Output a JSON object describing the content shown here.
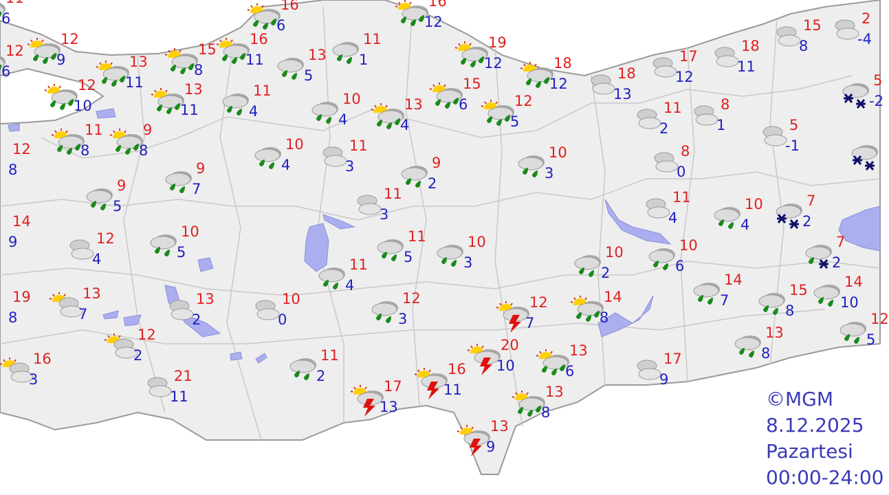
{
  "map": {
    "colors": {
      "land": "#eeeeee",
      "sea": "#ffffff",
      "border": "#c4c4c4",
      "lake": "#abaff0",
      "max": "#e02020",
      "min": "#2020c0",
      "footer": "#3a3ab8"
    },
    "stations": [
      {
        "icon": "partly-cloudy-rain",
        "max": "11",
        "min": "6"
      },
      {
        "icon": "partly-cloudy-rain",
        "max": "12",
        "min": "6"
      },
      {
        "icon": "partly-cloudy-rain",
        "max": "12",
        "min": "9"
      },
      {
        "icon": "partly-cloudy-rain",
        "max": "12",
        "min": "10"
      },
      {
        "icon": "partly-cloudy-rain",
        "max": "11",
        "min": "8"
      },
      {
        "icon": "partly-cloudy-rain",
        "max": "9",
        "min": "8"
      },
      {
        "icon": "fog",
        "max": "12",
        "min": "8"
      },
      {
        "icon": "fog",
        "max": "14",
        "min": "9"
      },
      {
        "icon": "fog",
        "max": "19",
        "min": "8"
      },
      {
        "icon": "rain",
        "max": "9",
        "min": "5"
      },
      {
        "icon": "cloudy",
        "max": "12",
        "min": "4"
      },
      {
        "icon": "partly-cloudy",
        "max": "13",
        "min": "7"
      },
      {
        "icon": "partly-cloudy",
        "max": "12",
        "min": "2"
      },
      {
        "icon": "partly-cloudy",
        "max": "16",
        "min": "3"
      },
      {
        "icon": "cloudy",
        "max": "21",
        "min": "11"
      },
      {
        "icon": "partly-cloudy-rain",
        "max": "13",
        "min": "11"
      },
      {
        "icon": "partly-cloudy-rain",
        "max": "13",
        "min": "11"
      },
      {
        "icon": "partly-cloudy-rain",
        "max": "15",
        "min": "8"
      },
      {
        "icon": "partly-cloudy-rain",
        "max": "16",
        "min": "11"
      },
      {
        "icon": "partly-cloudy-rain",
        "max": "16",
        "min": "6"
      },
      {
        "icon": "rain",
        "max": "11",
        "min": "4"
      },
      {
        "icon": "rain",
        "max": "9",
        "min": "7"
      },
      {
        "icon": "rain",
        "max": "10",
        "min": "5"
      },
      {
        "icon": "cloudy",
        "max": "13",
        "min": "2"
      },
      {
        "icon": "cloudy",
        "max": "10",
        "min": "0"
      },
      {
        "icon": "rain",
        "max": "13",
        "min": "5"
      },
      {
        "icon": "rain",
        "max": "11",
        "min": "1"
      },
      {
        "icon": "rain",
        "max": "10",
        "min": "4"
      },
      {
        "icon": "rain",
        "max": "10",
        "min": "4"
      },
      {
        "icon": "cloudy",
        "max": "11",
        "min": "3"
      },
      {
        "icon": "partly-cloudy-rain",
        "max": "13",
        "min": "4"
      },
      {
        "icon": "rain",
        "max": "9",
        "min": "2"
      },
      {
        "icon": "cloudy",
        "max": "11",
        "min": "3"
      },
      {
        "icon": "rain",
        "max": "11",
        "min": "5"
      },
      {
        "icon": "rain",
        "max": "11",
        "min": "4"
      },
      {
        "icon": "rain",
        "max": "10",
        "min": "3"
      },
      {
        "icon": "rain",
        "max": "12",
        "min": "3"
      },
      {
        "icon": "rain",
        "max": "11",
        "min": "2"
      },
      {
        "icon": "thunderstorm",
        "max": "17",
        "min": "13"
      },
      {
        "icon": "thunderstorm",
        "max": "16",
        "min": "11"
      },
      {
        "icon": "thunderstorm",
        "max": "20",
        "min": "10"
      },
      {
        "icon": "thunderstorm",
        "max": "12",
        "min": "7"
      },
      {
        "icon": "thunderstorm",
        "max": "13",
        "min": "9"
      },
      {
        "icon": "partly-cloudy-rain",
        "max": "16",
        "min": "12"
      },
      {
        "icon": "partly-cloudy-rain",
        "max": "15",
        "min": "6"
      },
      {
        "icon": "partly-cloudy-rain",
        "max": "19",
        "min": "12"
      },
      {
        "icon": "partly-cloudy-rain",
        "max": "12",
        "min": "5"
      },
      {
        "icon": "partly-cloudy-rain",
        "max": "18",
        "min": "12"
      },
      {
        "icon": "rain",
        "max": "10",
        "min": "3"
      },
      {
        "icon": "partly-cloudy-rain",
        "max": "13",
        "min": "6"
      },
      {
        "icon": "partly-cloudy-rain",
        "max": "13",
        "min": "8"
      },
      {
        "icon": "partly-cloudy-rain",
        "max": "14",
        "min": "8"
      },
      {
        "icon": "rain",
        "max": "10",
        "min": "2"
      },
      {
        "icon": "cloudy",
        "max": "18",
        "min": "13"
      },
      {
        "icon": "cloudy",
        "max": "17",
        "min": "9"
      },
      {
        "icon": "cloudy",
        "max": "17",
        "min": "12"
      },
      {
        "icon": "cloudy",
        "max": "11",
        "min": "2"
      },
      {
        "icon": "cloudy",
        "max": "8",
        "min": "0"
      },
      {
        "icon": "cloudy",
        "max": "11",
        "min": "4"
      },
      {
        "icon": "rain",
        "max": "10",
        "min": "6"
      },
      {
        "icon": "cloudy",
        "max": "8",
        "min": "1"
      },
      {
        "icon": "cloudy",
        "max": "18",
        "min": "11"
      },
      {
        "icon": "rain",
        "max": "14",
        "min": "7"
      },
      {
        "icon": "rain",
        "max": "10",
        "min": "4"
      },
      {
        "icon": "cloudy",
        "max": "15",
        "min": "8"
      },
      {
        "icon": "cloudy",
        "max": "5",
        "min": "-1"
      },
      {
        "icon": "snow",
        "max": "7",
        "min": "2"
      },
      {
        "icon": "rain-snow",
        "max": "7",
        "min": "2"
      },
      {
        "icon": "cloudy",
        "max": "2",
        "min": "-4"
      },
      {
        "icon": "snow",
        "max": "5",
        "min": "-2"
      },
      {
        "icon": "snow",
        "max": "",
        "min": ""
      },
      {
        "icon": "rain",
        "max": "15",
        "min": "8"
      },
      {
        "icon": "rain",
        "max": "14",
        "min": "10"
      },
      {
        "icon": "rain",
        "max": "13",
        "min": "8"
      },
      {
        "icon": "rain",
        "max": "12",
        "min": "5"
      }
    ]
  },
  "footer": {
    "copyright": "©MGM",
    "date": "8.12.2025",
    "day": "Pazartesi",
    "time_range": "00:00-24:00"
  }
}
